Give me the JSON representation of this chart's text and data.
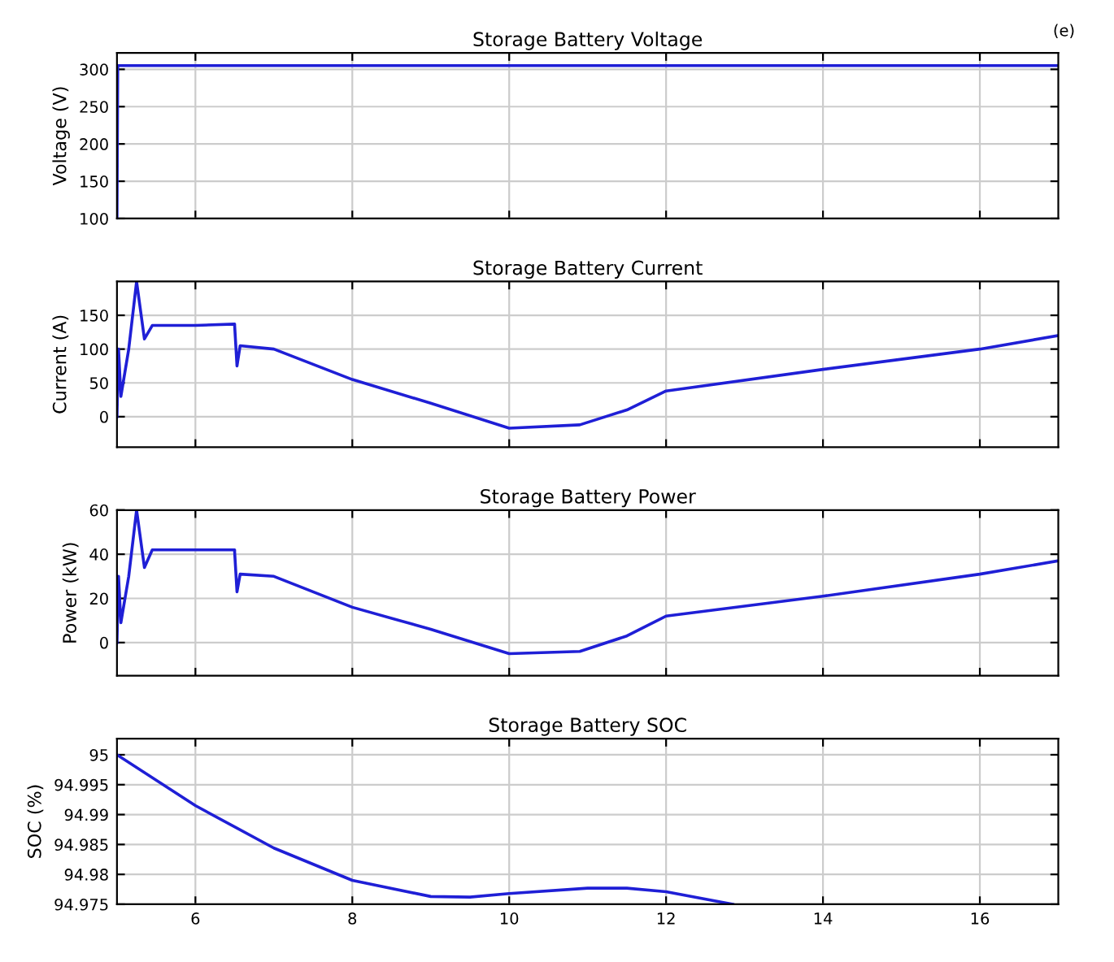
{
  "chart_data": [
    {
      "type": "line",
      "title": "Storage Battery Voltage",
      "ylabel": "Voltage (V)",
      "annotations": [
        "(e)"
      ],
      "xlim": [
        5,
        17
      ],
      "xticks": [
        {
          "value": 6,
          "label": null
        },
        {
          "value": 8,
          "label": null
        },
        {
          "value": 10,
          "label": null
        },
        {
          "value": 12,
          "label": null
        },
        {
          "value": 14,
          "label": null
        },
        {
          "value": 16,
          "label": null
        }
      ],
      "ylim": [
        100,
        322
      ],
      "yticks": [
        100,
        150,
        200,
        250,
        300
      ],
      "grid": true,
      "tick_labels": "y",
      "series": [
        {
          "color": "#1f1fd6",
          "x": [
            5,
            5.01,
            17
          ],
          "values": [
            100,
            305,
            305
          ]
        }
      ]
    },
    {
      "type": "line",
      "title": "Storage Battery Current",
      "ylabel": "Current (A)",
      "xlim": [
        5,
        17
      ],
      "xticks": [
        {
          "value": 6,
          "label": null
        },
        {
          "value": 8,
          "label": null
        },
        {
          "value": 10,
          "label": null
        },
        {
          "value": 12,
          "label": null
        },
        {
          "value": 14,
          "label": null
        },
        {
          "value": 16,
          "label": null
        }
      ],
      "ylim": [
        -45,
        200
      ],
      "yticks": [
        0,
        50,
        100,
        150
      ],
      "grid": true,
      "tick_labels": "y",
      "series": [
        {
          "color": "#1f1fd6",
          "x": [
            5,
            5.02,
            5.05,
            5.15,
            5.25,
            5.35,
            5.45,
            6,
            6.5,
            6.5,
            6.53,
            6.57,
            7,
            8,
            9,
            10,
            10.9,
            11.5,
            12,
            14,
            16,
            17
          ],
          "values": [
            0,
            100,
            30,
            100,
            200,
            115,
            135,
            135,
            137,
            135,
            75,
            105,
            100,
            55,
            20,
            -17,
            -12,
            10,
            38,
            70,
            100,
            120
          ]
        }
      ]
    },
    {
      "type": "line",
      "title": "Storage Battery Power",
      "ylabel": "Power (kW)",
      "xlim": [
        5,
        17
      ],
      "xticks": [
        {
          "value": 6,
          "label": null
        },
        {
          "value": 8,
          "label": null
        },
        {
          "value": 10,
          "label": null
        },
        {
          "value": 12,
          "label": null
        },
        {
          "value": 14,
          "label": null
        },
        {
          "value": 16,
          "label": null
        }
      ],
      "ylim": [
        -15,
        60
      ],
      "yticks": [
        0,
        20,
        40,
        60
      ],
      "grid": true,
      "tick_labels": "y",
      "series": [
        {
          "color": "#1f1fd6",
          "x": [
            5,
            5.02,
            5.05,
            5.15,
            5.25,
            5.35,
            5.45,
            6,
            6.5,
            6.5,
            6.53,
            6.57,
            7,
            8,
            9,
            10,
            10.9,
            11.5,
            12,
            14,
            16,
            17
          ],
          "values": [
            0,
            30,
            9,
            30,
            60,
            34,
            42,
            42,
            42,
            41,
            23,
            31,
            30,
            16,
            6,
            -5,
            -4,
            3,
            12,
            21,
            31,
            37
          ]
        }
      ]
    },
    {
      "type": "line",
      "title": "Storage Battery SOC",
      "ylabel": "SOC (%)",
      "xlim": [
        5,
        17
      ],
      "xticks": [
        6,
        8,
        10,
        12,
        14,
        16
      ],
      "ylim": [
        94.975,
        95.0027
      ],
      "yticks": [
        94.975,
        94.98,
        94.985,
        94.99,
        94.995,
        95
      ],
      "grid": true,
      "series": [
        {
          "color": "#1f1fd6",
          "x": [
            5,
            6,
            7,
            8,
            9,
            9.5,
            10,
            11,
            11.5,
            12,
            12.85
          ],
          "values": [
            95,
            94.9915,
            94.9844,
            94.979,
            94.9763,
            94.9762,
            94.9768,
            94.9777,
            94.9777,
            94.9771,
            94.975
          ]
        }
      ]
    }
  ]
}
